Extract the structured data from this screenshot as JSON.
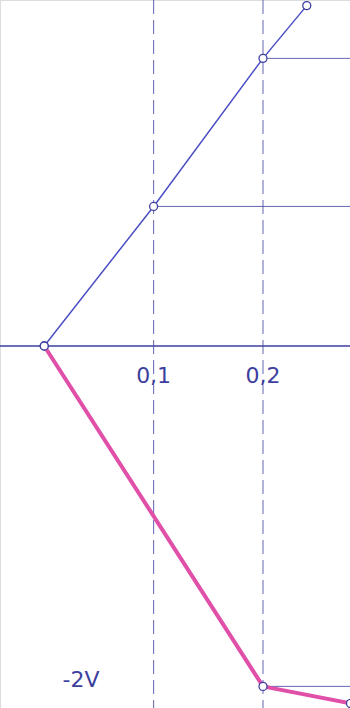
{
  "chart_data": {
    "type": "line",
    "xlim": [
      -0.04,
      0.28
    ],
    "ylim": [
      -2.13,
      2.03
    ],
    "xticks": [
      {
        "value": 0.1,
        "label": "0,1"
      },
      {
        "value": 0.2,
        "label": "0,2"
      }
    ],
    "yticks": [
      {
        "value": -2,
        "label": "-2V"
      }
    ],
    "grid": true,
    "marker": "circle",
    "series": [
      {
        "color": "#4b4fc4",
        "line_style": "solid",
        "x": [
          0,
          0.1,
          0.2,
          0.24
        ],
        "values": [
          0,
          0.82,
          1.69,
          2.0
        ]
      },
      {
        "color": "#e04fa8",
        "line_style": "solid",
        "x": [
          0,
          0.2,
          0.28
        ],
        "values": [
          0,
          -2,
          -2.1
        ]
      }
    ]
  }
}
